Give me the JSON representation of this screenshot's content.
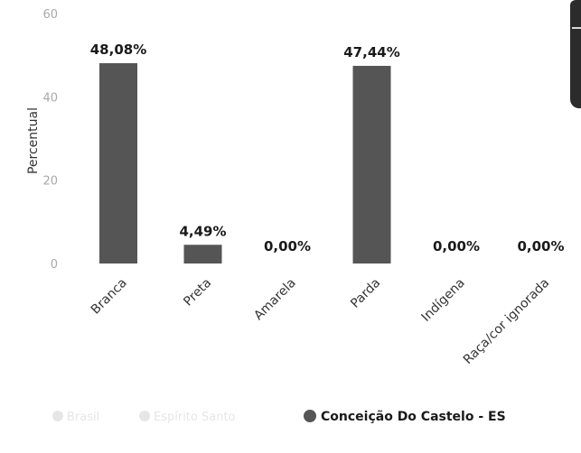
{
  "chart_data": {
    "type": "bar",
    "ylabel": "Percentual",
    "xlabel": "",
    "title": "",
    "ylim": [
      0,
      60
    ],
    "yticks": [
      0,
      20,
      40,
      60
    ],
    "grid": false,
    "categories": [
      "Branca",
      "Preta",
      "Amarela",
      "Parda",
      "Indígena",
      "Raça/cor ignorada"
    ],
    "series": [
      {
        "name": "Conceição Do Castelo - ES",
        "values": [
          48.08,
          4.49,
          0.0,
          47.44,
          0.0,
          0.0
        ],
        "labels": [
          "48,08%",
          "4,49%",
          "0,00%",
          "47,44%",
          "0,00%",
          "0,00%"
        ],
        "color": "#555555"
      }
    ],
    "legend": {
      "placement": "bottom",
      "items": [
        {
          "label": "Brasil",
          "active": false,
          "color": "#e6e6e6"
        },
        {
          "label": "Espírito Santo",
          "active": false,
          "color": "#e6e6e6"
        },
        {
          "label": "Conceição Do Castelo - ES",
          "active": true,
          "color": "#555555"
        }
      ]
    }
  },
  "colors": {
    "bar": "#555555",
    "axis_text": "#a8a8a8",
    "value_label": "#1a1a1a",
    "legend_inactive": "#e6e6e6",
    "legend_active": "#1a1a1a"
  }
}
